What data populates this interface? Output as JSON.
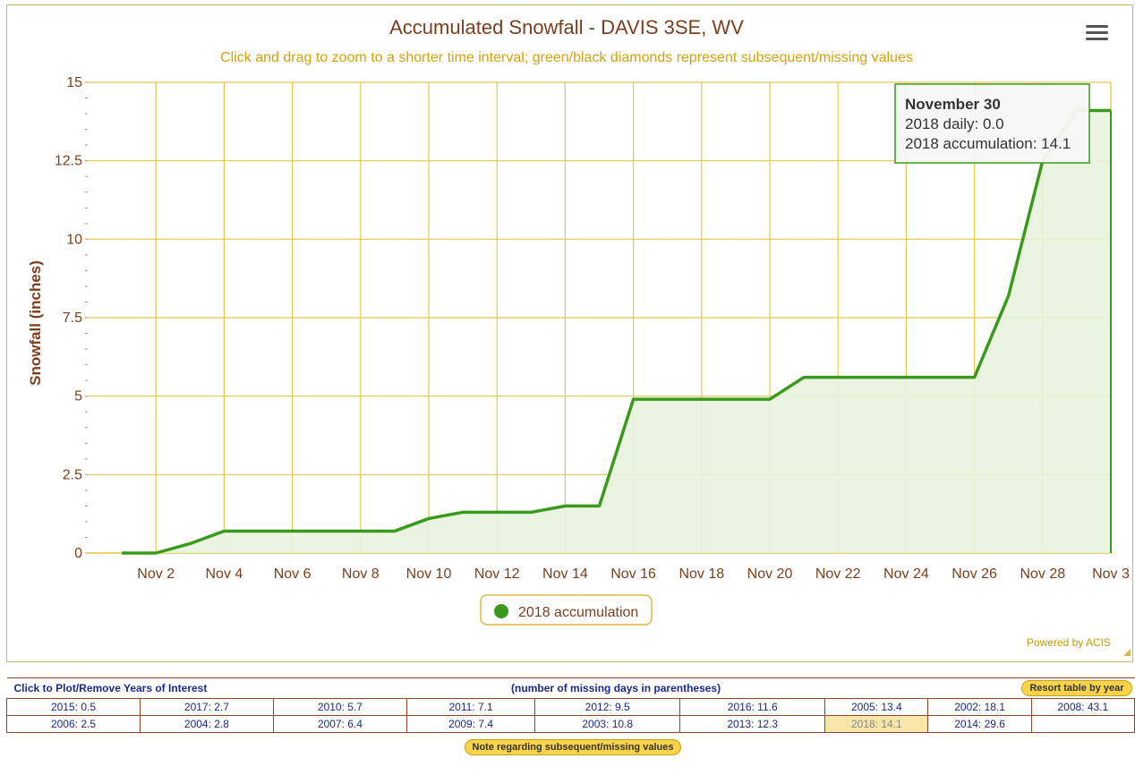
{
  "chart_data": {
    "type": "area",
    "title": "Accumulated Snowfall - DAVIS 3SE, WV",
    "subtitle": "Click and drag to zoom to a shorter time interval; green/black diamonds represent subsequent/missing values",
    "xlabel": "",
    "ylabel": "Snowfall (inches)",
    "ylim": [
      0,
      15
    ],
    "yticks": [
      "0",
      "2.5",
      "5",
      "7.5",
      "10",
      "12.5",
      "15"
    ],
    "xticks": [
      "Nov 2",
      "Nov 4",
      "Nov 6",
      "Nov 8",
      "Nov 10",
      "Nov 12",
      "Nov 14",
      "Nov 16",
      "Nov 18",
      "Nov 20",
      "Nov 22",
      "Nov 24",
      "Nov 26",
      "Nov 28",
      "Nov 3"
    ],
    "x": [
      1,
      2,
      3,
      4,
      5,
      6,
      7,
      8,
      9,
      10,
      11,
      12,
      13,
      14,
      15,
      16,
      17,
      18,
      19,
      20,
      21,
      22,
      23,
      24,
      25,
      26,
      27,
      28,
      29,
      30
    ],
    "series": [
      {
        "name": "2018 accumulation",
        "color": "#3a9a1c",
        "values": [
          0.0,
          0.0,
          0.3,
          0.7,
          0.7,
          0.7,
          0.7,
          0.7,
          0.7,
          1.1,
          1.3,
          1.3,
          1.3,
          1.5,
          1.5,
          4.9,
          4.9,
          4.9,
          4.9,
          4.9,
          5.6,
          5.6,
          5.6,
          5.6,
          5.6,
          5.6,
          8.2,
          12.5,
          14.1,
          14.1
        ]
      }
    ],
    "grid": true,
    "legend": "bottom-center",
    "credit": "Powered by ACIS"
  },
  "tooltip": {
    "title": "November 30",
    "daily": "2018 daily: 0.0",
    "accumulation": "2018 accumulation: 14.1"
  },
  "years_table": {
    "header_left": "Click to Plot/Remove Years of Interest",
    "header_center": "(number of missing days in parentheses)",
    "resort_label": "Resort table by year",
    "rows": [
      [
        "2015: 0.5",
        "2017: 2.7",
        "2010: 5.7",
        "2011: 7.1",
        "2012: 9.5",
        "2016: 11.6",
        "2005: 13.4",
        "2002: 18.1",
        "2008: 43.1"
      ],
      [
        "2006: 2.5",
        "2004: 2.8",
        "2007: 6.4",
        "2009: 7.4",
        "2003: 10.8",
        "2013: 12.3",
        "2018: 14.1",
        "2014: 29.6",
        ""
      ]
    ],
    "selected": "2018: 14.1"
  },
  "note_label": "Note regarding subsequent/missing values"
}
